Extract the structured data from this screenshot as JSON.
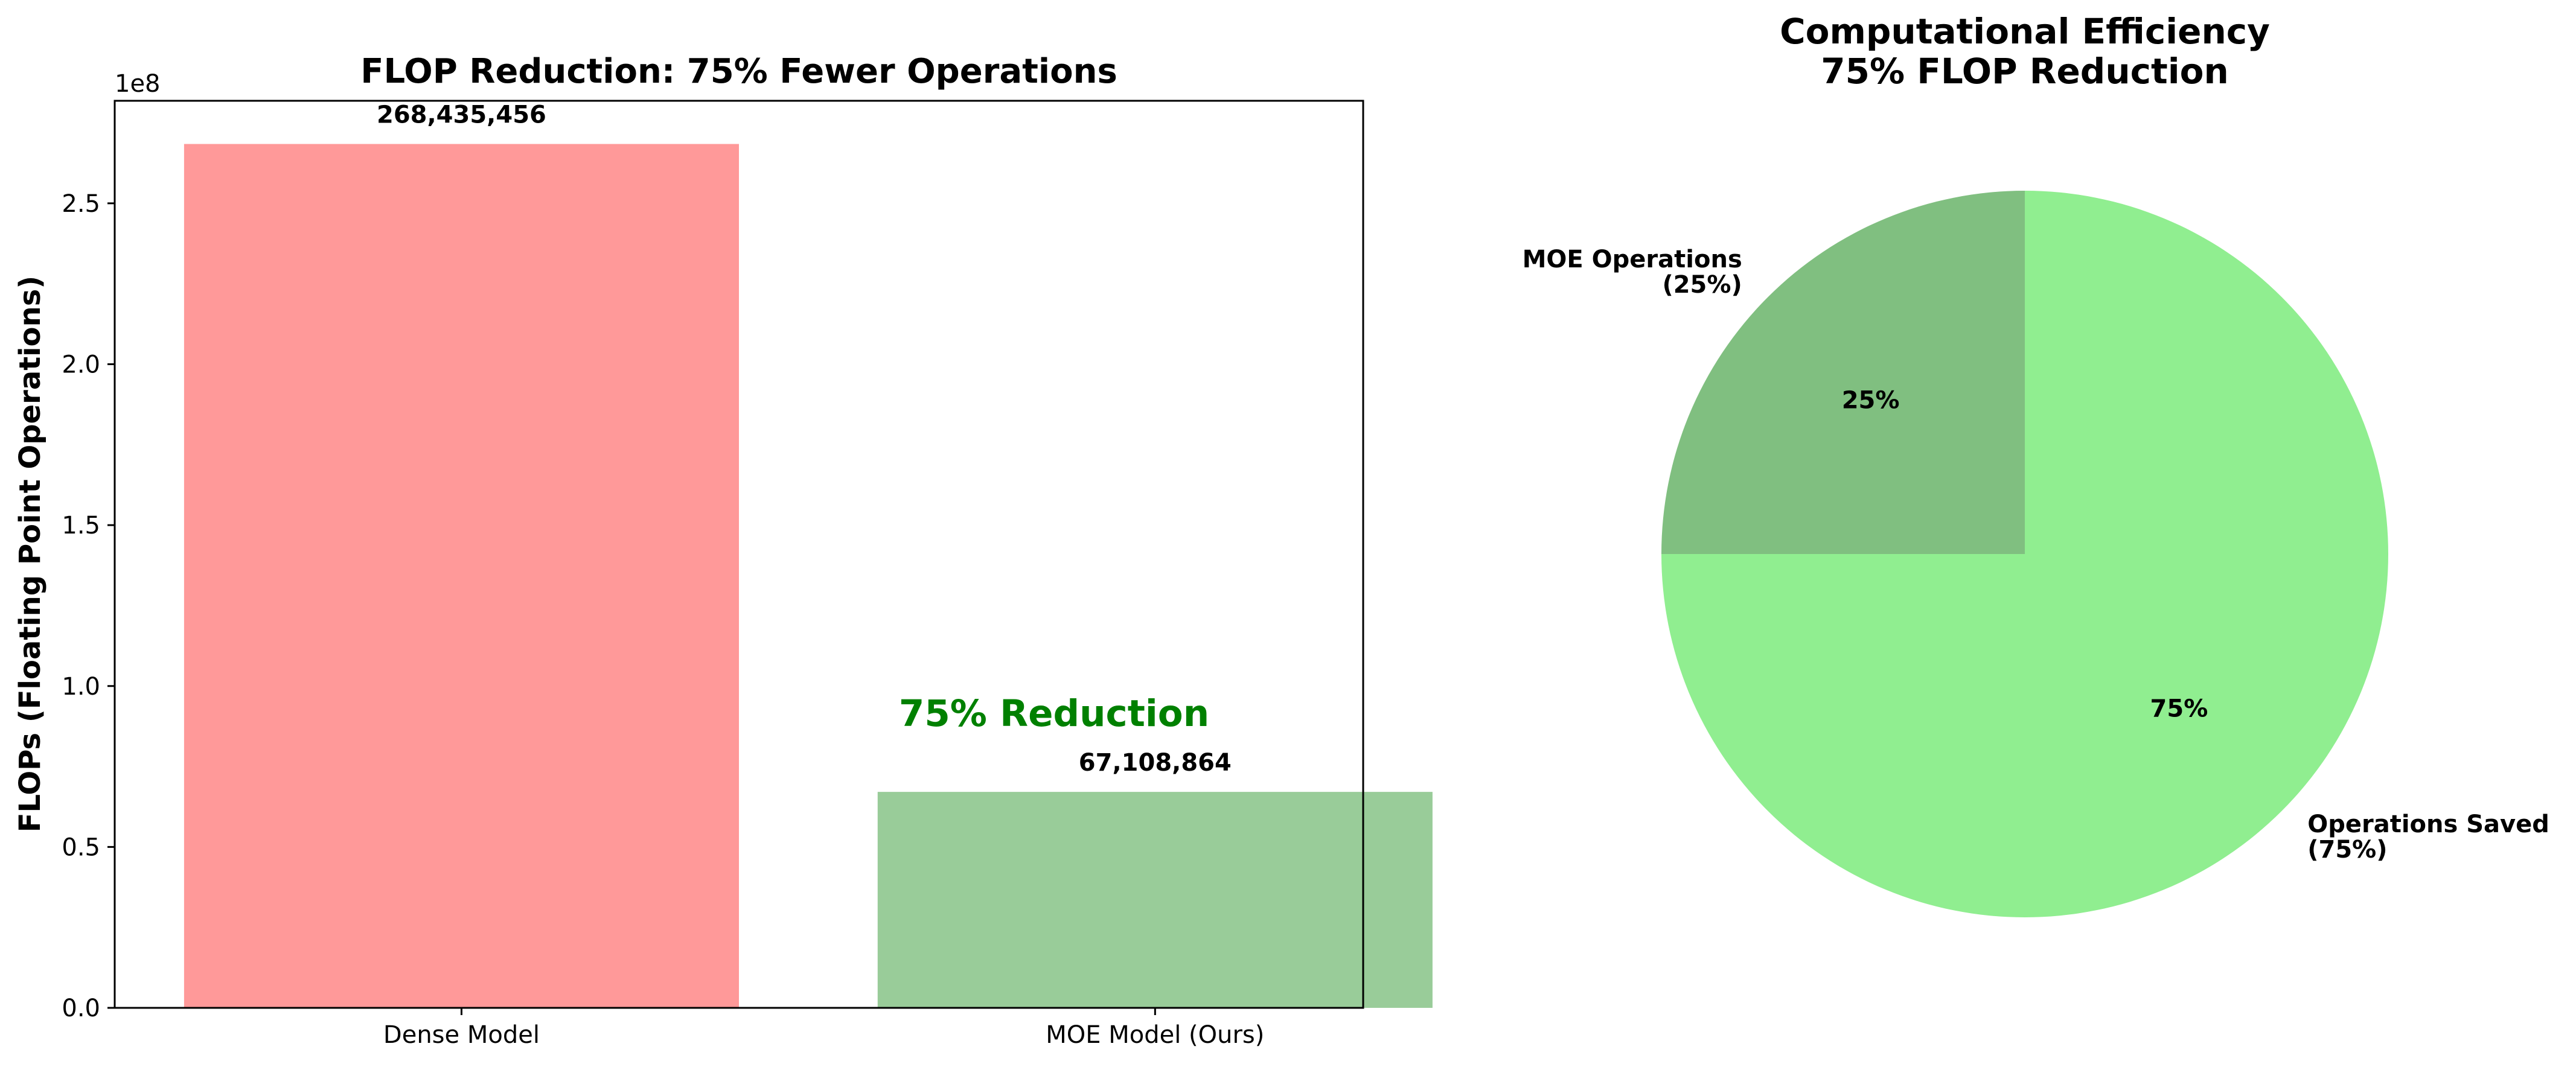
{
  "chart_data": [
    {
      "type": "bar",
      "title": "FLOP Reduction: 75% Fewer Operations",
      "xlabel": "",
      "ylabel": "FLOPs (Floating Point Operations)",
      "y_scale_label": "1e8",
      "categories": [
        "Dense Model",
        "MOE Model (Ours)"
      ],
      "values": [
        268435456,
        67108864
      ],
      "value_labels": [
        "268,435,456",
        "67,108,864"
      ],
      "colors": [
        "#ff9999",
        "#99cc99"
      ],
      "ylim": [
        0,
        281857228.8
      ],
      "yticks": [
        0,
        50000000,
        100000000,
        150000000,
        200000000,
        250000000
      ],
      "ytick_labels": [
        "0.0",
        "0.5",
        "1.0",
        "1.5",
        "2.0",
        "2.5"
      ],
      "annotation": {
        "text": "75% Reduction",
        "color": "#008000"
      },
      "grid": false,
      "legend": "none"
    },
    {
      "type": "pie",
      "title_lines": [
        "Computational Efficiency",
        "75% FLOP Reduction"
      ],
      "slices": [
        {
          "outer_label_lines": [
            "MOE Operations",
            "(25%)"
          ],
          "value": 25,
          "pct_label": "25%",
          "color": "#80bf80"
        },
        {
          "outer_label_lines": [
            "Operations Saved",
            "(75%)"
          ],
          "value": 75,
          "pct_label": "75%",
          "color": "#90ee90"
        }
      ],
      "start_angle_deg": 90,
      "direction": "counterclockwise",
      "legend": "none"
    }
  ]
}
